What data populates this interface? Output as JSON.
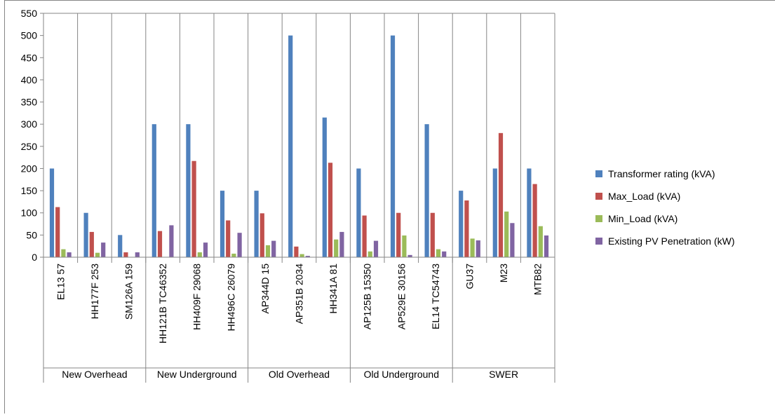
{
  "chart_data": {
    "type": "bar",
    "ylim": [
      0,
      550
    ],
    "yticks": [
      "0",
      "50",
      "100",
      "150",
      "200",
      "250",
      "300",
      "350",
      "400",
      "450",
      "500",
      "550"
    ],
    "grid": "vertical category gridlines",
    "legend_position": "right",
    "groups": [
      {
        "label": "New Overhead",
        "categories": [
          "EL13 57",
          "HH177F 253",
          "SM126A 159"
        ]
      },
      {
        "label": "New Underground",
        "categories": [
          "HH121B TC46352",
          "HH409F 29068",
          "HH496C 26079"
        ]
      },
      {
        "label": "Old Overhead",
        "categories": [
          "AP344D 15",
          "AP351B 2034",
          "HH341A 81"
        ]
      },
      {
        "label": "Old Underground",
        "categories": [
          "AP125B 15350",
          "AP529E 30156",
          "EL14 TC54743"
        ]
      },
      {
        "label": "SWER",
        "categories": [
          "GU37",
          "M23",
          "MTB82"
        ]
      }
    ],
    "categories": [
      "EL13 57",
      "HH177F 253",
      "SM126A 159",
      "HH121B TC46352",
      "HH409F 29068",
      "HH496C 26079",
      "AP344D 15",
      "AP351B 2034",
      "HH341A 81",
      "AP125B 15350",
      "AP529E 30156",
      "EL14 TC54743",
      "GU37",
      "M23",
      "MTB82"
    ],
    "series": [
      {
        "name": "Transformer rating (kVA)",
        "color": "#4F81BD",
        "values": [
          200,
          100,
          50,
          300,
          300,
          150,
          150,
          500,
          315,
          200,
          500,
          300,
          150,
          200,
          200
        ]
      },
      {
        "name": "Max_Load (kVA)",
        "color": "#C0504D",
        "values": [
          113,
          57,
          11,
          59,
          217,
          83,
          99,
          24,
          213,
          94,
          100,
          100,
          128,
          280,
          165
        ]
      },
      {
        "name": "Min_Load (kVA)",
        "color": "#9BBB59",
        "values": [
          18,
          10,
          0,
          0,
          11,
          8,
          27,
          7,
          40,
          13,
          49,
          18,
          42,
          103,
          70
        ]
      },
      {
        "name": "Existing PV Penetration (kW)",
        "color": "#8064A2",
        "values": [
          11,
          33,
          11,
          72,
          33,
          55,
          37,
          3,
          57,
          37,
          5,
          13,
          38,
          77,
          49
        ]
      }
    ]
  }
}
